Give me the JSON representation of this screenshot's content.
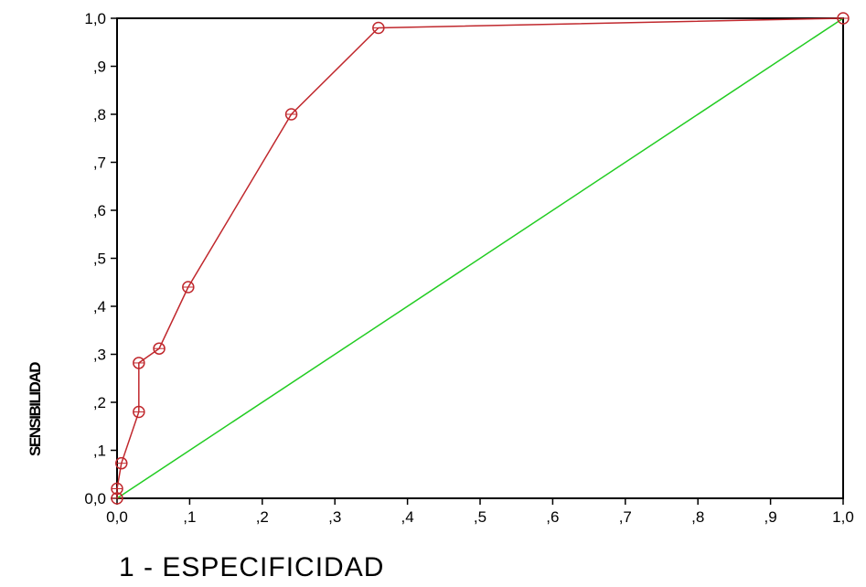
{
  "chart_data": {
    "type": "line",
    "title": "",
    "xlabel": "1 - ESPECIFICIDAD",
    "ylabel": "SENSIBILIDAD",
    "xlim": [
      0,
      1
    ],
    "ylim": [
      0,
      1
    ],
    "x_tick_labels": [
      "0,0",
      ",1",
      ",2",
      ",3",
      ",4",
      ",5",
      ",6",
      ",7",
      ",8",
      ",9",
      "1,0"
    ],
    "y_tick_labels": [
      "0,0",
      ",1",
      ",2",
      ",3",
      ",4",
      ",5",
      ",6",
      ",7",
      ",8",
      ",9",
      "1,0"
    ],
    "grid": false,
    "legend": "none",
    "series": [
      {
        "x": [
          0.0,
          0.0,
          0.006,
          0.03,
          0.03,
          0.058,
          0.098,
          0.24,
          0.36,
          1.0
        ],
        "y": [
          0.0,
          0.02,
          0.073,
          0.18,
          0.282,
          0.312,
          0.44,
          0.8,
          0.98,
          1.0
        ],
        "color": "#c0282d",
        "markers": "circle"
      },
      {
        "x": [
          0.0,
          1.0
        ],
        "y": [
          0.0,
          1.0
        ],
        "color": "#22cc22",
        "markers": "none"
      }
    ]
  }
}
